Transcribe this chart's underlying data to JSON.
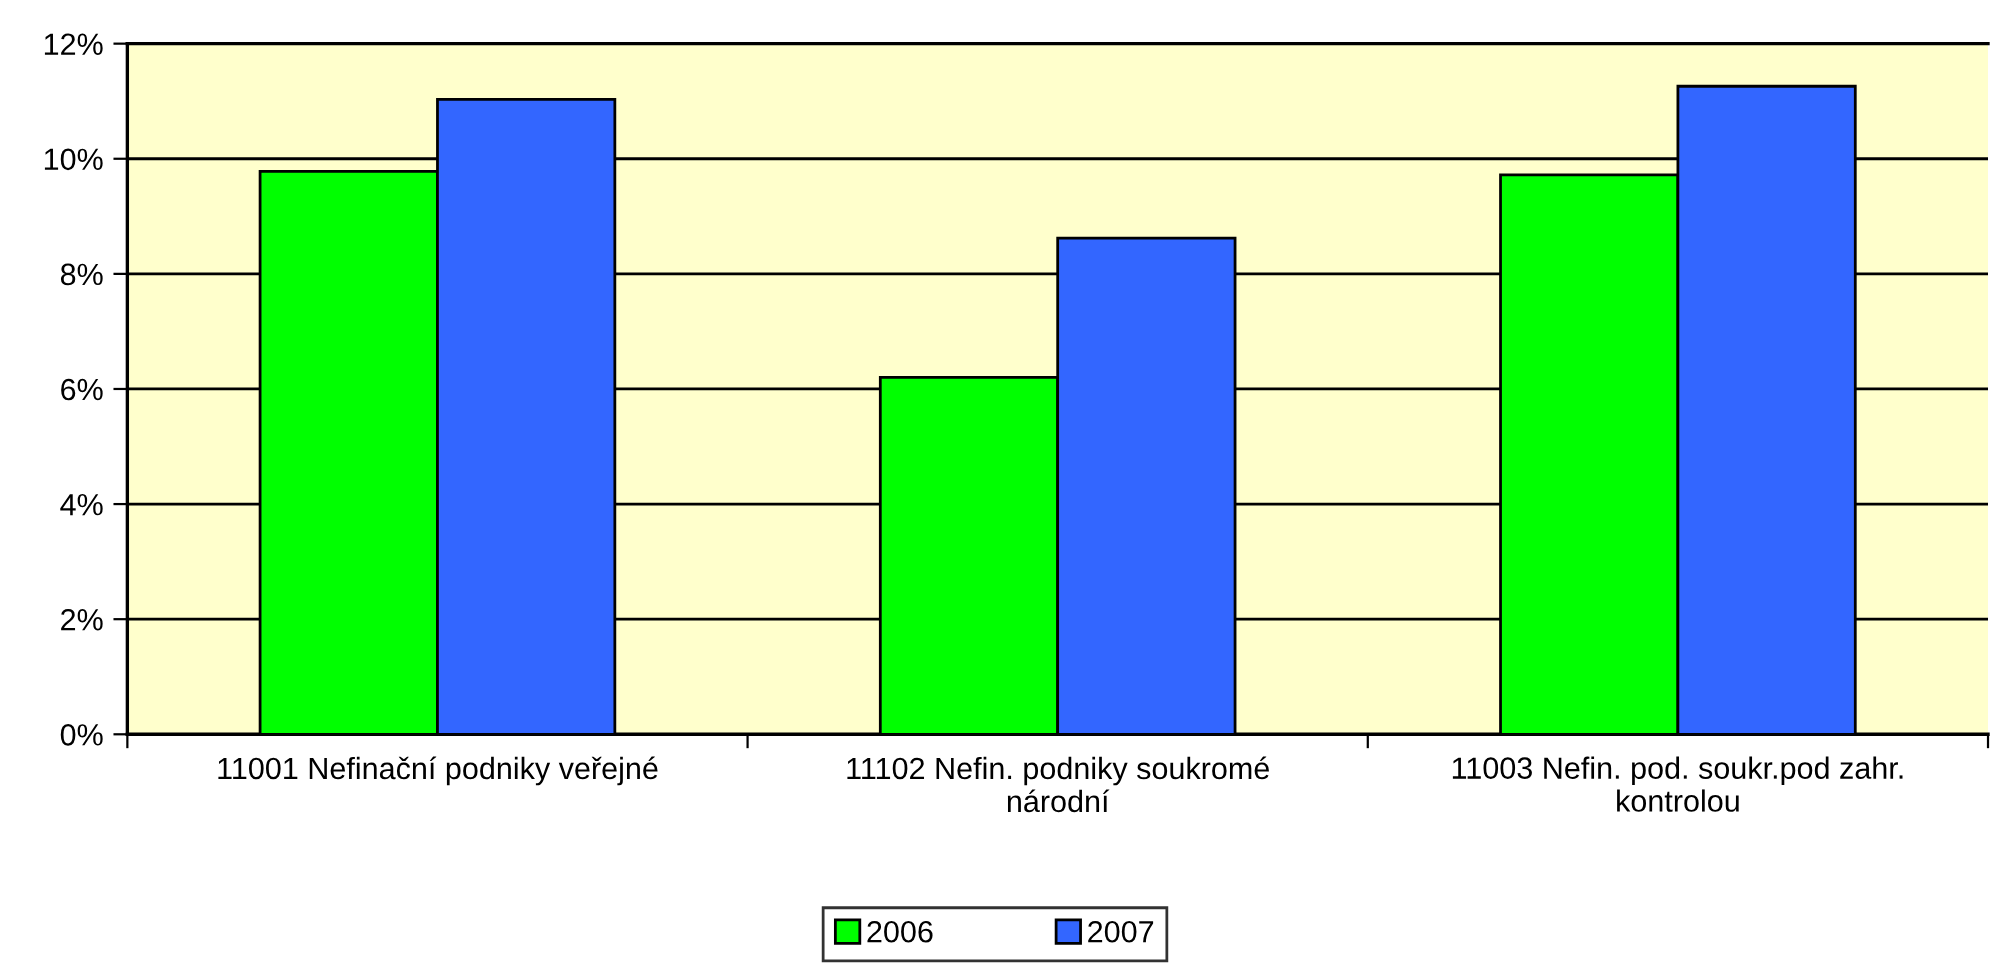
{
  "chart_data": {
    "type": "bar",
    "categories": [
      "11001 Nefinační podniky veřejné",
      "11102 Nefin. podniky soukromé národní",
      "11003 Nefin. pod. soukr.pod zahr. kontrolou"
    ],
    "series": [
      {
        "name": "2006",
        "color": "#00ff00",
        "values": [
          9.78,
          6.2,
          9.72
        ]
      },
      {
        "name": "2007",
        "color": "#3366ff",
        "values": [
          11.03,
          8.62,
          11.26
        ]
      }
    ],
    "ylim": [
      0,
      12
    ],
    "yticks": [
      {
        "value": 0,
        "label": "0%"
      },
      {
        "value": 2,
        "label": "2%"
      },
      {
        "value": 4,
        "label": "4%"
      },
      {
        "value": 6,
        "label": "6%"
      },
      {
        "value": 8,
        "label": "8%"
      },
      {
        "value": 10,
        "label": "10%"
      },
      {
        "value": 12,
        "label": "12%"
      }
    ],
    "grid": "y",
    "legend": "bottom"
  }
}
